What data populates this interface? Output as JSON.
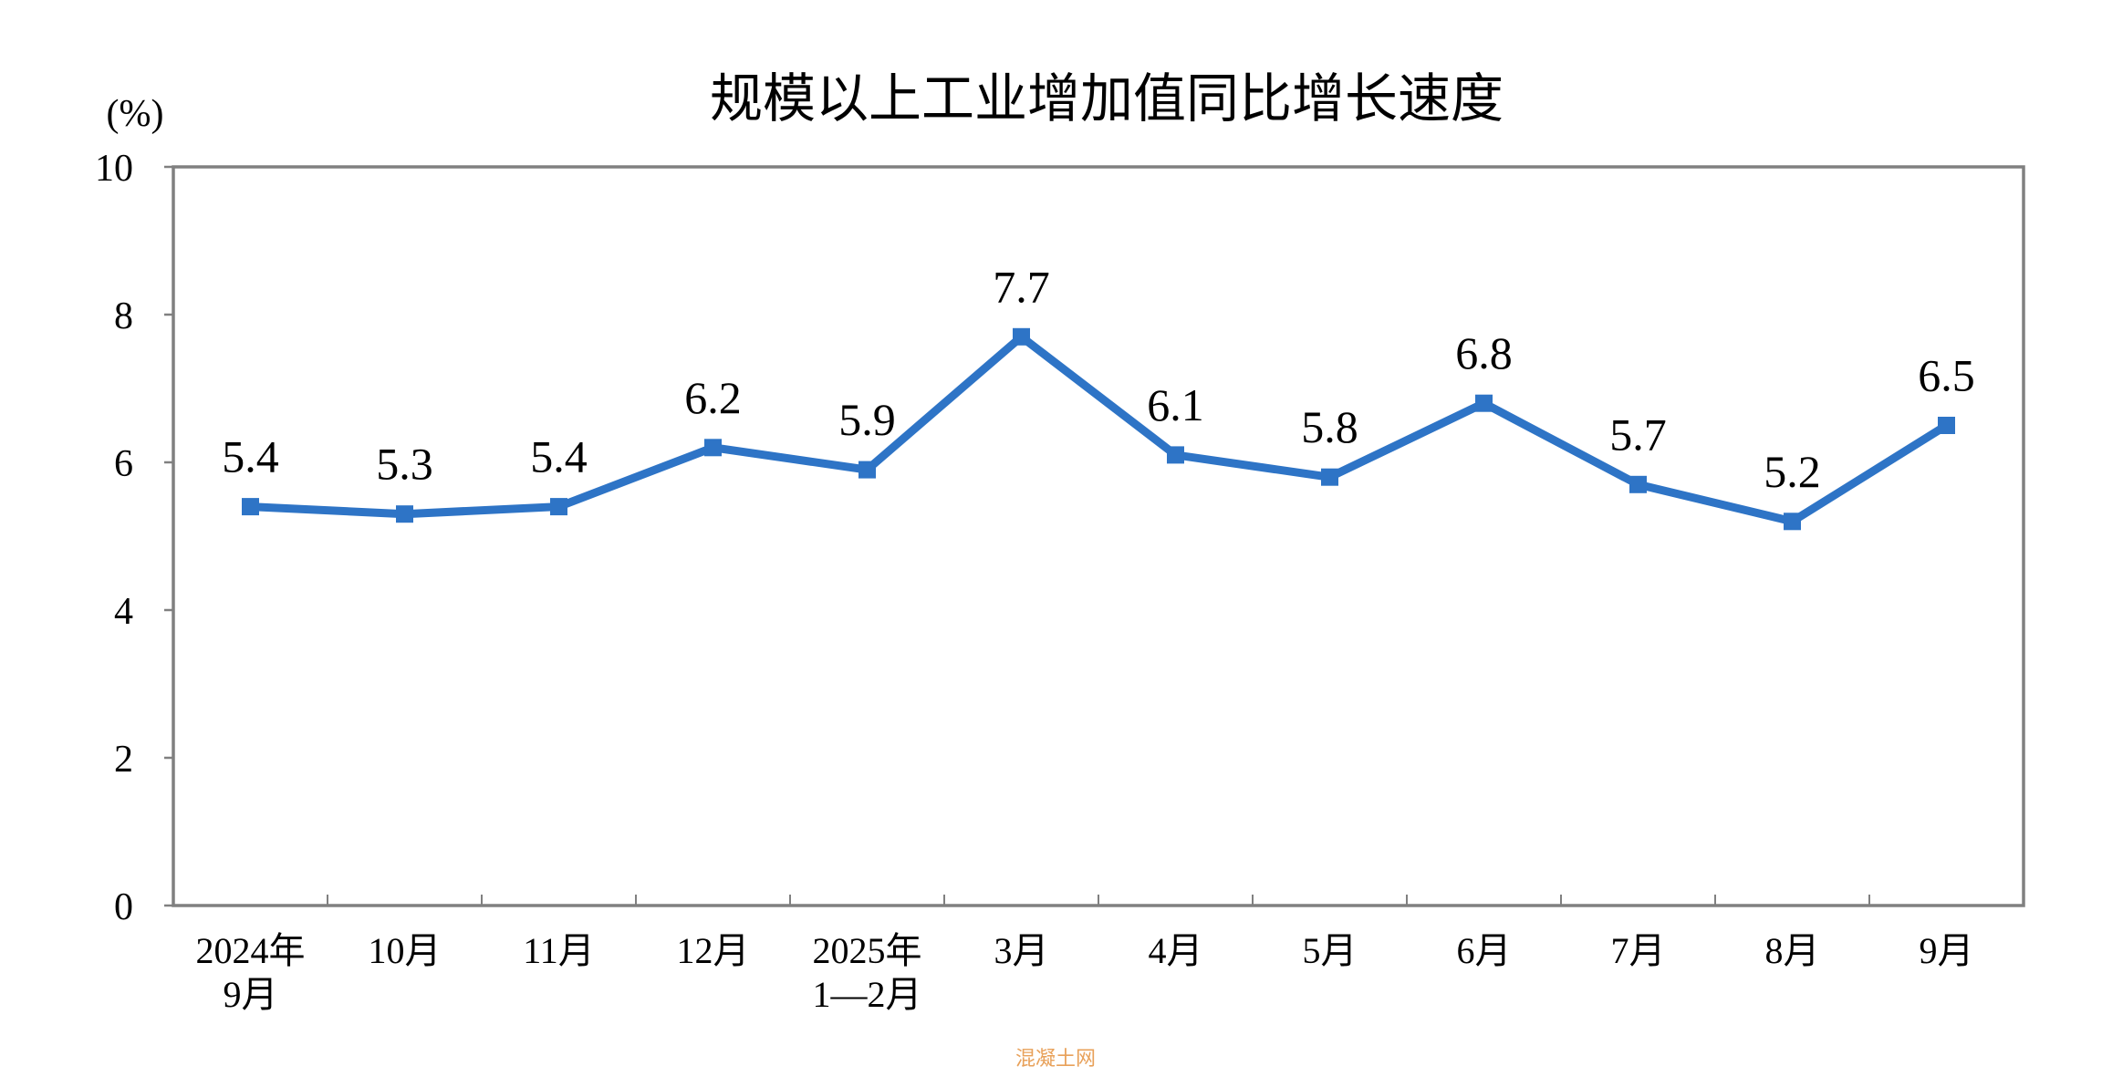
{
  "chart_data": {
    "type": "line",
    "title": "规模以上工业增加值同比增长速度",
    "unit_label": "(%)",
    "ylim": [
      0,
      10
    ],
    "yticks": [
      0,
      2,
      4,
      6,
      8,
      10
    ],
    "grid": false,
    "legend": "none",
    "categories": [
      [
        "2024年",
        "9月"
      ],
      [
        "10月"
      ],
      [
        "11月"
      ],
      [
        "12月"
      ],
      [
        "2025年",
        "1—2月"
      ],
      [
        "3月"
      ],
      [
        "4月"
      ],
      [
        "5月"
      ],
      [
        "6月"
      ],
      [
        "7月"
      ],
      [
        "8月"
      ],
      [
        "9月"
      ]
    ],
    "series": [
      {
        "values": [
          5.4,
          5.3,
          5.4,
          6.2,
          5.9,
          7.7,
          6.1,
          5.8,
          6.8,
          5.7,
          5.2,
          6.5
        ],
        "labels": [
          "5.4",
          "5.3",
          "5.4",
          "6.2",
          "5.9",
          "7.7",
          "6.1",
          "5.8",
          "6.8",
          "5.7",
          "5.2",
          "6.5"
        ],
        "color": "#2e74c6",
        "marker": "square"
      }
    ],
    "axis_color": "#808080"
  },
  "watermark": "混凝土网"
}
